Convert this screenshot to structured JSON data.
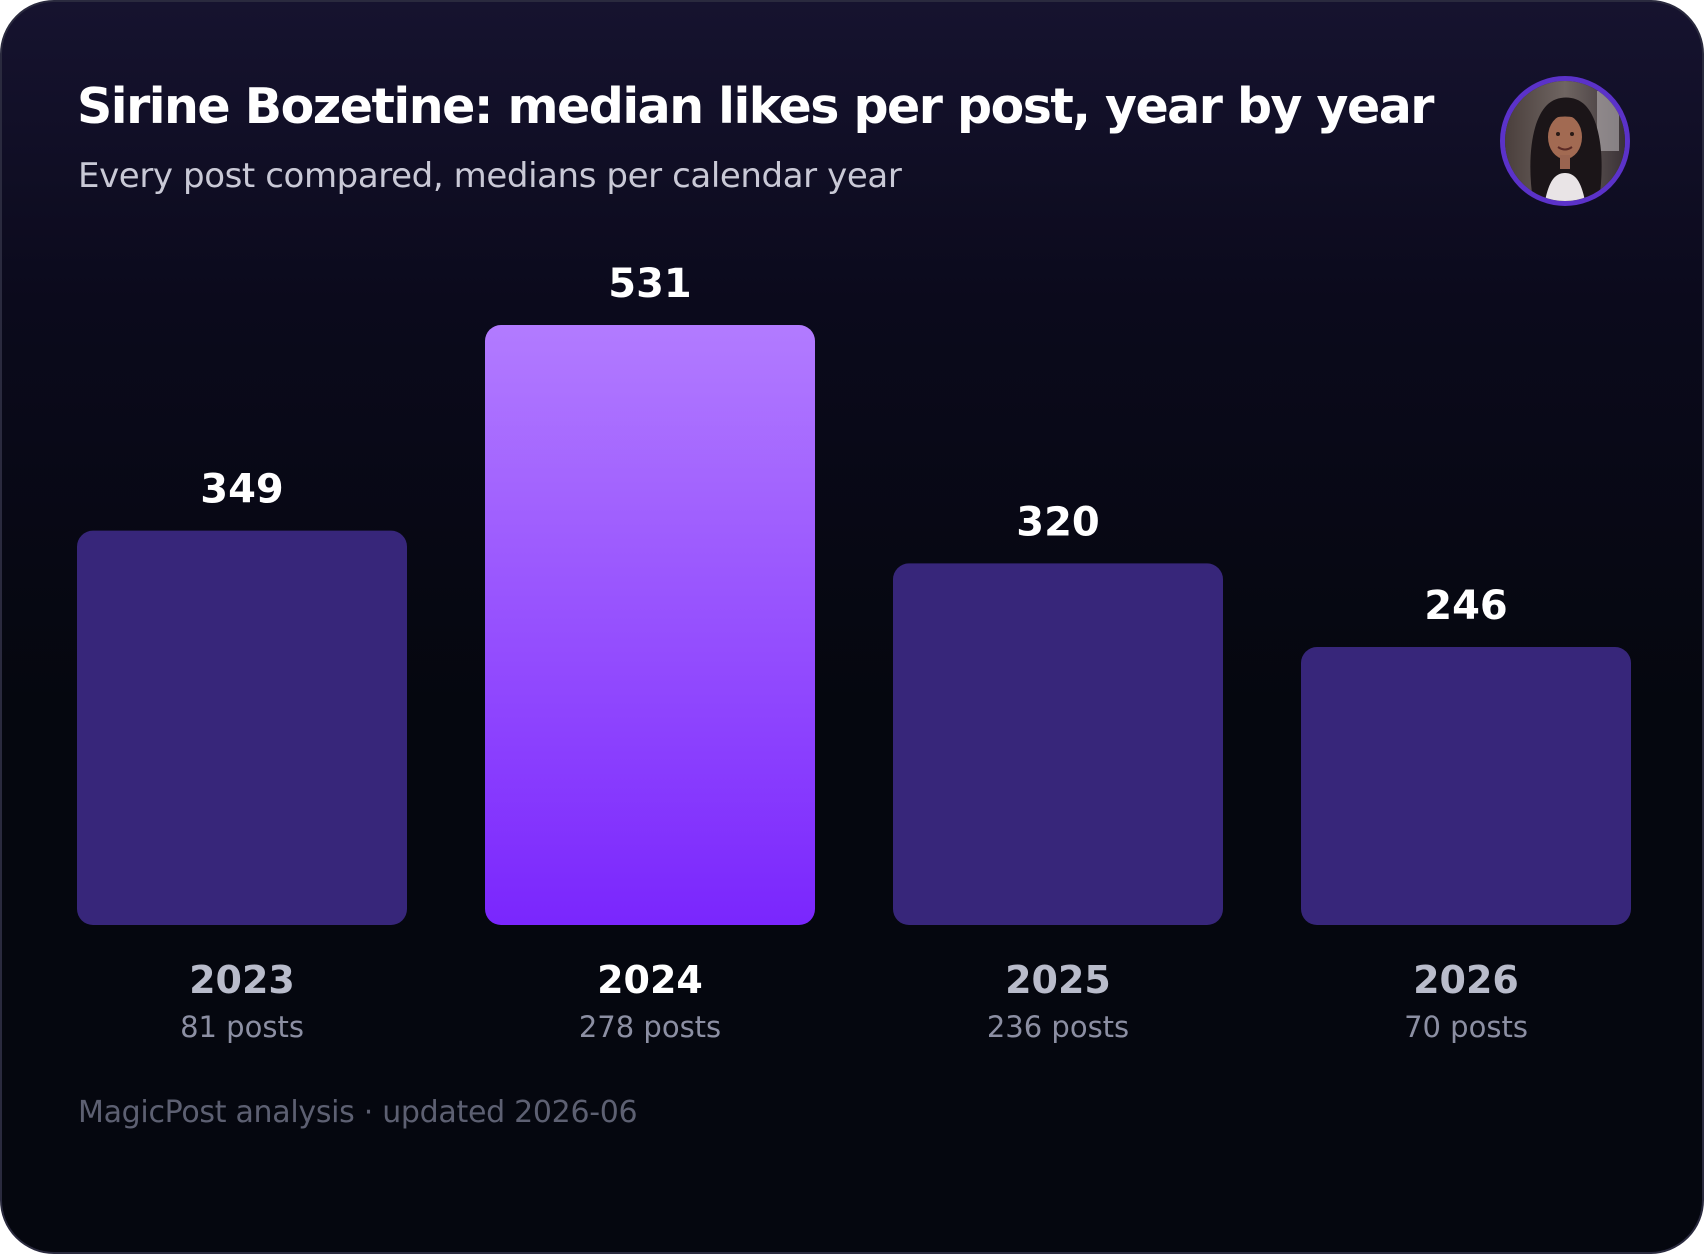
{
  "header": {
    "title": "Sirine Bozetine: median likes per post, year by year",
    "subtitle": "Every post compared, medians per calendar year"
  },
  "avatar": {
    "icon": "profile-photo-icon"
  },
  "footer": {
    "text": "MagicPost analysis · updated 2026-06"
  },
  "colors": {
    "bar": "#37267a",
    "bar_highlight_top": "#b27bff",
    "bar_highlight_bottom": "#7a26fd",
    "value_label": "#ffffff",
    "category_label": "#b9bccb",
    "category_label_highlight": "#ffffff",
    "posts_label": "#8c8fa3"
  },
  "chart_data": {
    "type": "bar",
    "title": "Sirine Bozetine: median likes per post, year by year",
    "subtitle": "Every post compared, medians per calendar year",
    "categories": [
      "2023",
      "2024",
      "2025",
      "2026"
    ],
    "values": [
      349,
      531,
      320,
      246
    ],
    "value_labels": [
      "349",
      "531",
      "320",
      "246"
    ],
    "posts": [
      "81 posts",
      "278 posts",
      "236 posts",
      "70 posts"
    ],
    "highlight": "2024",
    "xlabel": "",
    "ylabel": "",
    "grid": false
  }
}
